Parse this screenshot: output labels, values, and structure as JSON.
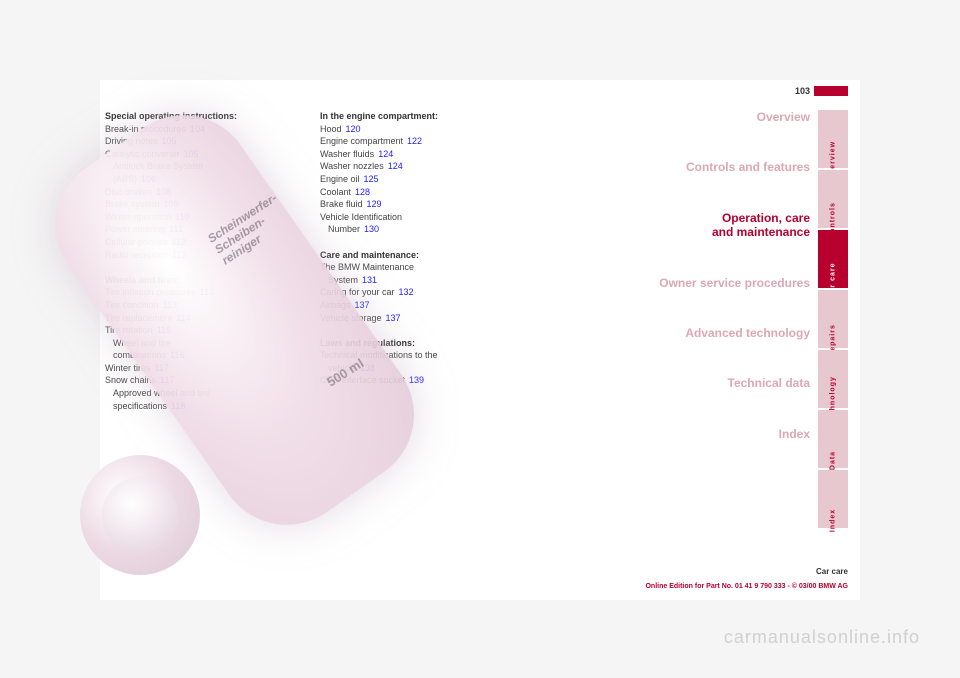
{
  "page_number": "103",
  "col1": {
    "special_heading": "Special operating instructions:",
    "items1": [
      {
        "text": "Break-in procedures",
        "ref": "104"
      },
      {
        "text": "Driving notes",
        "ref": "105"
      },
      {
        "text": "Catalytic converter",
        "ref": "105"
      },
      {
        "text": "Antilock Brake System",
        "indent": true
      },
      {
        "text": "(ABS)",
        "ref": "106",
        "indent": true
      },
      {
        "text": "Disc brakes",
        "ref": "108"
      },
      {
        "text": "Brake system",
        "ref": "109"
      },
      {
        "text": "Winter operation",
        "ref": "110"
      },
      {
        "text": "Power steering",
        "ref": "111"
      },
      {
        "text": "Cellular phones",
        "ref": "112"
      },
      {
        "text": "Radio reception",
        "ref": "112"
      }
    ],
    "wheels_heading": "Wheels and tires:",
    "items2": [
      {
        "text": "Tire inflation pressures",
        "ref": "113"
      },
      {
        "text": "Tire condition",
        "ref": "113"
      },
      {
        "text": "Tire replacement",
        "ref": "114"
      },
      {
        "text": "Tire rotation",
        "ref": "115"
      },
      {
        "text": "Wheel and tire",
        "indent": true
      },
      {
        "text": "combinations",
        "ref": "116",
        "indent": true
      },
      {
        "text": "Winter tires",
        "ref": "117"
      },
      {
        "text": "Snow chains",
        "ref": "117"
      },
      {
        "text": "Approved wheel and tire",
        "indent": true
      },
      {
        "text": "specifications",
        "ref": "118",
        "indent": true
      }
    ]
  },
  "col2": {
    "hood_heading": "In the engine compartment:",
    "items1": [
      {
        "text": "Hood",
        "ref": "120"
      },
      {
        "text": "Engine compartment",
        "ref": "122"
      },
      {
        "text": "Washer fluids",
        "ref": "124"
      },
      {
        "text": "Washer nozzles",
        "ref": "124"
      },
      {
        "text": "Engine oil",
        "ref": "125"
      },
      {
        "text": "Coolant",
        "ref": "128"
      },
      {
        "text": "Brake fluid",
        "ref": "129"
      },
      {
        "text": "Vehicle Identification"
      },
      {
        "text": "Number",
        "ref": "130",
        "indent": true
      }
    ],
    "care_heading": "Care and maintenance:",
    "items2": [
      {
        "text": "The BMW Maintenance"
      },
      {
        "text": "System",
        "ref": "131",
        "indent": true
      },
      {
        "text": "Caring for your car",
        "ref": "132"
      },
      {
        "text": "Airbags",
        "ref": "137"
      },
      {
        "text": "Vehicle storage",
        "ref": "137"
      }
    ],
    "laws_heading": "Laws and regulations:",
    "items3": [
      {
        "text": "Technical modifications to the"
      },
      {
        "text": "vehicle",
        "ref": "138",
        "indent": true
      },
      {
        "text": "OBD interface socket",
        "ref": "139"
      }
    ]
  },
  "nav": [
    {
      "label": "Overview",
      "tab": "Overview",
      "active": false
    },
    {
      "label": "Controls and features",
      "tab": "Controls",
      "active": false
    },
    {
      "label": "Operation, care\nand maintenance",
      "tab": "Car care",
      "active": true
    },
    {
      "label": "Owner service procedures",
      "tab": "Repairs",
      "active": false
    },
    {
      "label": "Advanced technology",
      "tab": "Technology",
      "active": false
    },
    {
      "label": "Technical data",
      "tab": "Data",
      "active": false
    },
    {
      "label": "Index",
      "tab": "Index",
      "active": false
    }
  ],
  "footer": {
    "label": "Car care",
    "line": "Online Edition for Part No. 01 41 9 790 333 - © 03/00 BMW AG"
  },
  "watermark": "carmanualsonline.info",
  "bottle": {
    "label_line1": "Scheinwerfer-",
    "label_line2": "Scheiben-",
    "label_line3": "reiniger",
    "volume": "500 ml"
  }
}
